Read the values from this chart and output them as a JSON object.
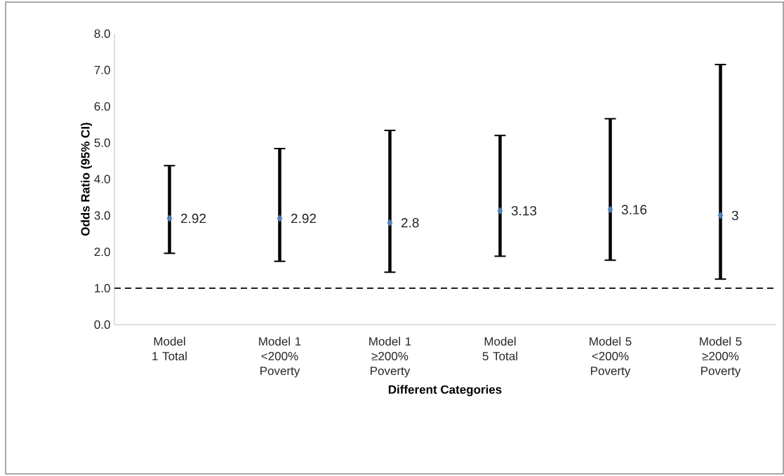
{
  "chart_data": {
    "type": "scatter",
    "xlabel": "Different Categories",
    "ylabel": "Odds Ratio (95% CI)",
    "categories": [
      "Model 1 Total",
      "Model 1 <200% Poverty",
      "Model 1 ≥200% Poverty",
      "Model 5 Total",
      "Model 5 <200% Poverty",
      "Model 5 ≥200% Poverty"
    ],
    "series": [
      {
        "color": "#4f81bd",
        "values": [
          2.92,
          2.92,
          2.8,
          3.13,
          3.16,
          3
        ],
        "errors": [
          [
            1.96,
            4.37
          ],
          [
            1.74,
            4.84
          ],
          [
            1.44,
            5.34
          ],
          [
            1.88,
            5.2
          ],
          [
            1.77,
            5.66
          ],
          [
            1.25,
            7.15
          ]
        ]
      }
    ],
    "marker": "diamond",
    "data_labels": true,
    "ylim": [
      0,
      8
    ],
    "yticks": [
      {
        "value": 0,
        "label": "0.0"
      },
      {
        "value": 1,
        "label": "1.0"
      },
      {
        "value": 2,
        "label": "2.0"
      },
      {
        "value": 3,
        "label": "3.0"
      },
      {
        "value": 4,
        "label": "4.0"
      },
      {
        "value": 5,
        "label": "5.0"
      },
      {
        "value": 6,
        "label": "6.0"
      },
      {
        "value": 7,
        "label": "7.0"
      },
      {
        "value": 8,
        "label": "8.0"
      }
    ],
    "ref_lines": [
      {
        "axis": "y",
        "value": 1,
        "line_style": "dashed"
      }
    ]
  }
}
